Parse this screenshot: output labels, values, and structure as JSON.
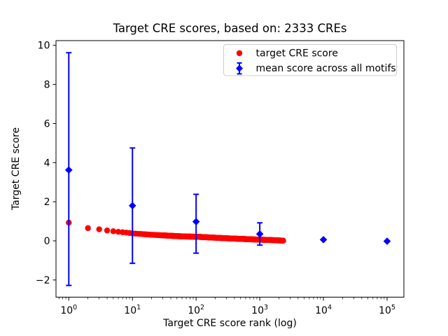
{
  "figure": {
    "title": "Target CRE scores, based on: 2333 CREs",
    "x_label": "Target CRE score rank (log)",
    "y_label": "Target CRE score"
  },
  "chart_data": {
    "type": "scatter",
    "title": "Target CRE scores, based on: 2333 CREs",
    "xlabel": "Target CRE score rank (log)",
    "ylabel": "Target CRE score",
    "x_scale": "log10",
    "x_tick_exponents": [
      0,
      1,
      2,
      3,
      4,
      5
    ],
    "y_ticks": [
      -2,
      0,
      2,
      4,
      6,
      8,
      10
    ],
    "x_log_range": [
      -0.201,
      5.264
    ],
    "ylim": [
      -2.88,
      10.24
    ],
    "grid": false,
    "legend_position": "upper right",
    "background": "#ffffff",
    "axis_color": "#000000",
    "legend_border_color": "#cccccc",
    "series": [
      {
        "name": "target CRE score",
        "marker": "circle",
        "color": "#ff0000",
        "n_points": 2333,
        "rank_range": [
          1,
          2333
        ],
        "description": "dense decreasing scatter, one red dot per CRE rank 1..2333; values estimated at anchor ranks below and interpolated in log-rank space",
        "anchors": [
          [
            1,
            0.93
          ],
          [
            2,
            0.65
          ],
          [
            3,
            0.59
          ],
          [
            4,
            0.53
          ],
          [
            5,
            0.49
          ],
          [
            6,
            0.46
          ],
          [
            7,
            0.44
          ],
          [
            8,
            0.42
          ],
          [
            9,
            0.4
          ],
          [
            10,
            0.38
          ],
          [
            15,
            0.34
          ],
          [
            20,
            0.31
          ],
          [
            30,
            0.28
          ],
          [
            50,
            0.24
          ],
          [
            70,
            0.22
          ],
          [
            100,
            0.21
          ],
          [
            150,
            0.18
          ],
          [
            200,
            0.16
          ],
          [
            300,
            0.13
          ],
          [
            500,
            0.1
          ],
          [
            700,
            0.08
          ],
          [
            1000,
            0.06
          ],
          [
            1500,
            0.04
          ],
          [
            2000,
            0.02
          ],
          [
            2333,
            0.01
          ]
        ]
      },
      {
        "name": "mean score across all motifs",
        "marker": "diamond",
        "color": "#0000ff",
        "error_bars": true,
        "points": [
          {
            "rank": 1,
            "mean": 3.62,
            "lo": -2.28,
            "hi": 9.62
          },
          {
            "rank": 10,
            "mean": 1.8,
            "lo": -1.15,
            "hi": 4.75
          },
          {
            "rank": 100,
            "mean": 0.98,
            "lo": -0.63,
            "hi": 2.38
          },
          {
            "rank": 1000,
            "mean": 0.35,
            "lo": -0.22,
            "hi": 0.92
          },
          {
            "rank": 10000,
            "mean": 0.06,
            "lo": 0.06,
            "hi": 0.06
          },
          {
            "rank": 100000,
            "mean": -0.02,
            "lo": -0.02,
            "hi": -0.02
          }
        ]
      }
    ]
  }
}
